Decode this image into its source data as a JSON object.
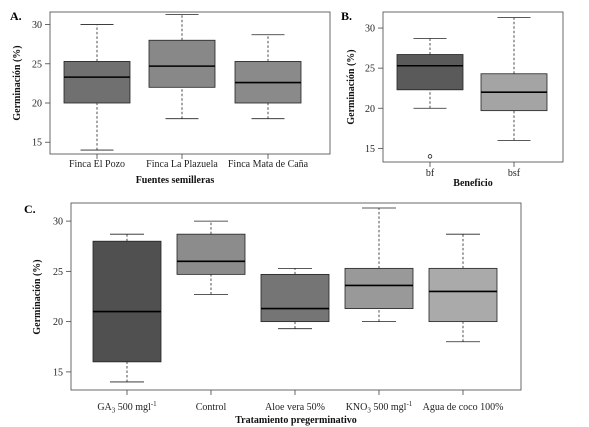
{
  "chart_data": [
    {
      "panel": "A.",
      "type": "boxplot",
      "xlabel": "Fuentes semilleras",
      "ylabel": "Germinación (%)",
      "ylim": [
        13.5,
        31.6
      ],
      "yticks": [
        15,
        20,
        25,
        30
      ],
      "grid": false,
      "categories": [
        "Finca El Pozo",
        "Finca La Plazuela",
        "Finca Mata de Caña"
      ],
      "boxes": [
        {
          "min": 14,
          "q1": 20,
          "median": 23.3,
          "q3": 25.3,
          "max": 30,
          "color": "#707070"
        },
        {
          "min": 18,
          "q1": 22,
          "median": 24.7,
          "q3": 28,
          "max": 31.3,
          "color": "#888888"
        },
        {
          "min": 18,
          "q1": 20,
          "median": 22.6,
          "q3": 25.3,
          "max": 28.7,
          "color": "#8a8a8a"
        }
      ]
    },
    {
      "panel": "B.",
      "type": "boxplot",
      "xlabel": "Beneficio",
      "ylabel": "Germinación (%)",
      "ylim": [
        13.3,
        32
      ],
      "yticks": [
        15,
        20,
        25,
        30
      ],
      "grid": false,
      "categories": [
        "bf",
        "bsf"
      ],
      "boxes": [
        {
          "min": 20,
          "q1": 22.3,
          "median": 25.3,
          "q3": 26.7,
          "max": 28.7,
          "outliers": [
            14
          ],
          "color": "#5a5a5a"
        },
        {
          "min": 16,
          "q1": 19.7,
          "median": 22,
          "q3": 24.3,
          "max": 31.3,
          "color": "#a4a4a4"
        }
      ]
    },
    {
      "panel": "C.",
      "type": "boxplot",
      "xlabel": "Tratamiento pregerminativo",
      "ylabel": "Germinación (%)",
      "ylim": [
        13.2,
        31.8
      ],
      "yticks": [
        15,
        20,
        25,
        30
      ],
      "grid": false,
      "categories": [
        {
          "text": "GA",
          "sub": "3",
          "rest": " 500 mgl",
          "sup": "-1"
        },
        {
          "text": "Control"
        },
        {
          "text": "Aloe vera 50%"
        },
        {
          "text": "KNO",
          "sub": "3",
          "rest": " 500 mgl",
          "sup": "-1"
        },
        {
          "text": "Agua de coco 100%"
        }
      ],
      "boxes": [
        {
          "min": 14,
          "q1": 16,
          "median": 21,
          "q3": 28,
          "max": 28.7,
          "color": "#505050"
        },
        {
          "min": 22.7,
          "q1": 24.7,
          "median": 26,
          "q3": 28.7,
          "max": 30,
          "color": "#8c8c8c"
        },
        {
          "min": 19.3,
          "q1": 20,
          "median": 21.3,
          "q3": 24.7,
          "max": 25.3,
          "color": "#757575"
        },
        {
          "min": 20,
          "q1": 21.3,
          "median": 23.6,
          "q3": 25.3,
          "max": 31.3,
          "color": "#999999"
        },
        {
          "min": 18,
          "q1": 20,
          "median": 23,
          "q3": 25.3,
          "max": 28.7,
          "color": "#aaaaaa"
        }
      ]
    }
  ]
}
